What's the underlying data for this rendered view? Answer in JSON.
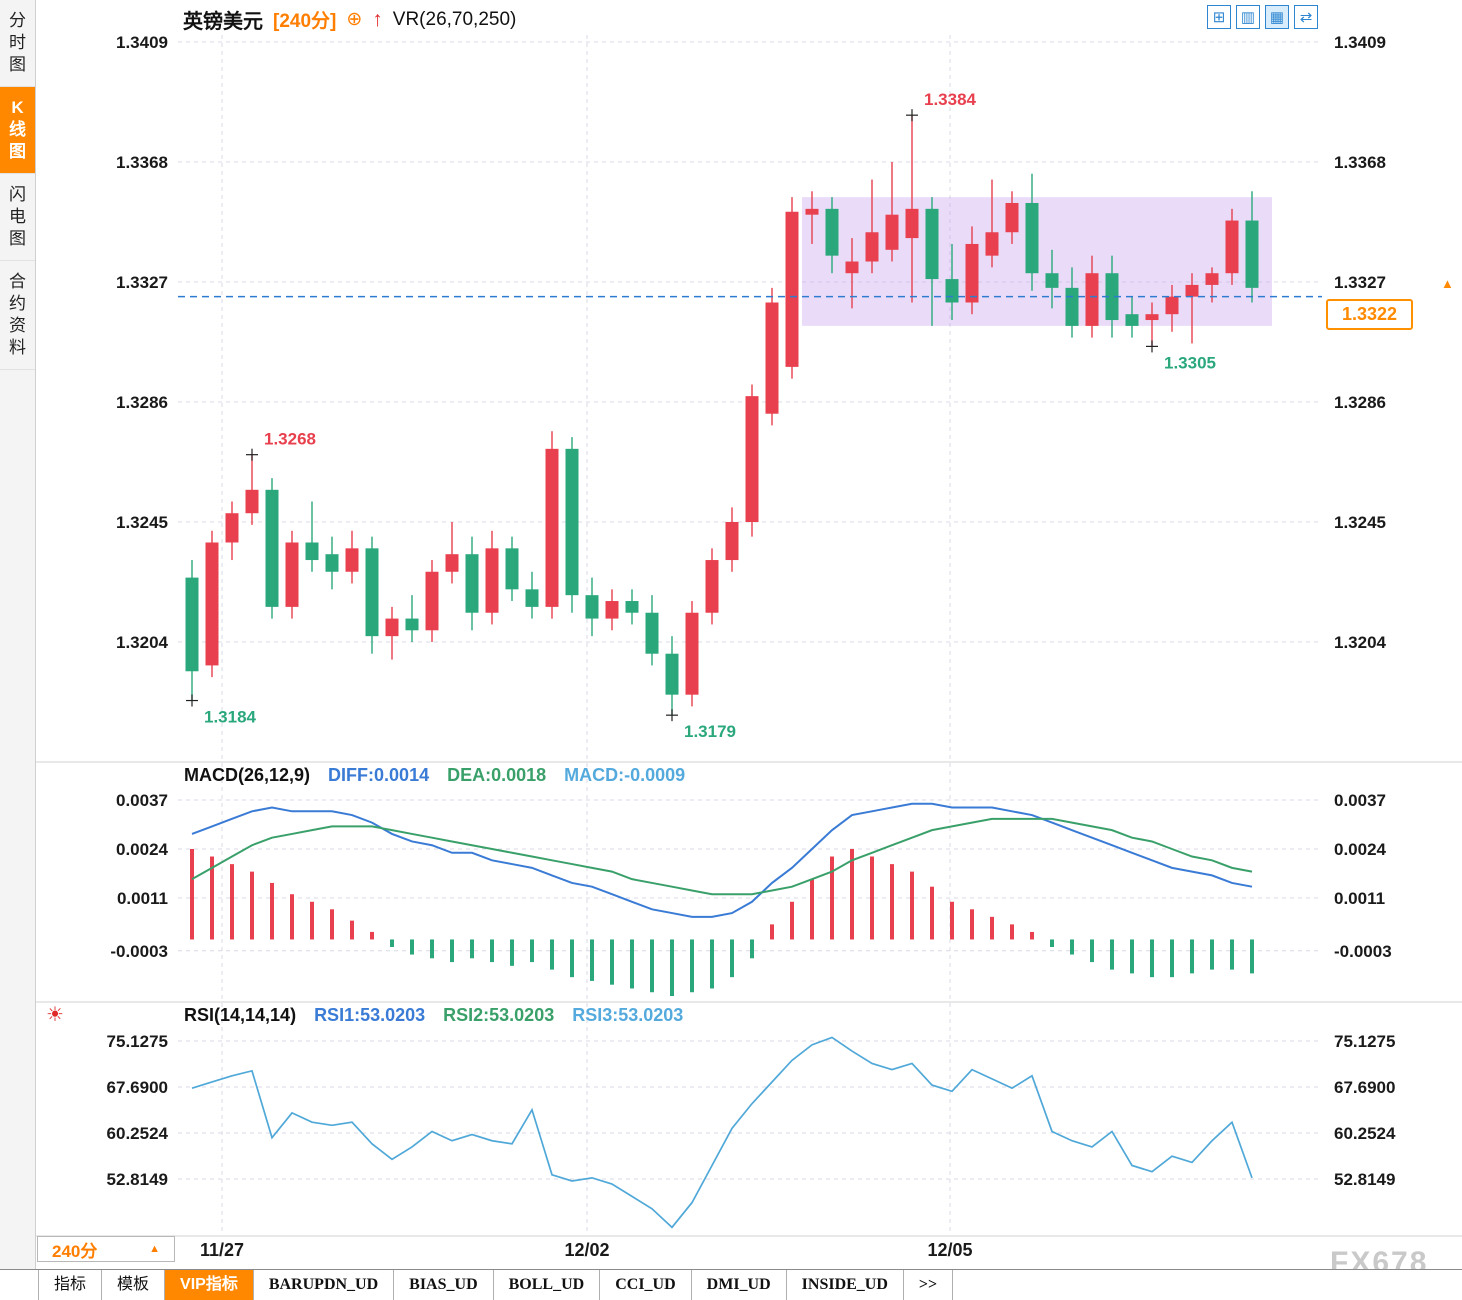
{
  "window": {
    "watermark": "FX678"
  },
  "sidebar": {
    "items": [
      {
        "label": "分时图",
        "active": false
      },
      {
        "label": "K线图",
        "active": true
      },
      {
        "label": "闪电图",
        "active": false
      },
      {
        "label": "合约资料",
        "active": false
      }
    ]
  },
  "header": {
    "symbol": "英镑美元",
    "period": "[240分]",
    "plus_icon": "⊕",
    "arrow_icon": "↑",
    "indicator": "VR(26,70,250)",
    "icons": [
      {
        "name": "grid-layout",
        "glyph": "⊞"
      },
      {
        "name": "multi-pane",
        "glyph": "▥"
      },
      {
        "name": "chart-panes",
        "glyph": "▦"
      },
      {
        "name": "cycle-layout",
        "glyph": "⇄"
      }
    ]
  },
  "macd_panel": {
    "title": "MACD(26,12,9)",
    "diff_label": "DIFF:0.0014",
    "dea_label": "DEA:0.0018",
    "macd_label": "MACD:-0.0009"
  },
  "rsi_panel": {
    "title": "RSI(14,14,14)",
    "rsi1_label": "RSI1:53.0203",
    "rsi2_label": "RSI2:53.0203",
    "rsi3_label": "RSI3:53.0203",
    "marker_glyph": "☀"
  },
  "current_price": {
    "value": "1.3322",
    "arrow": "▲"
  },
  "period_selector": {
    "label": "240分",
    "arrow": "▲"
  },
  "bottom_tabs": {
    "items": [
      {
        "label": "指标",
        "active": false,
        "en": false
      },
      {
        "label": "模板",
        "active": false,
        "en": false
      },
      {
        "label": "VIP指标",
        "active": true,
        "en": false
      },
      {
        "label": "BARUPDN_UD",
        "active": false,
        "en": true
      },
      {
        "label": "BIAS_UD",
        "active": false,
        "en": true
      },
      {
        "label": "BOLL_UD",
        "active": false,
        "en": true
      },
      {
        "label": "CCI_UD",
        "active": false,
        "en": true
      },
      {
        "label": "DMI_UD",
        "active": false,
        "en": true
      },
      {
        "label": "INSIDE_UD",
        "active": false,
        "en": true
      },
      {
        "label": ">>",
        "active": false,
        "en": true
      }
    ]
  },
  "x_axis": {
    "labels": [
      {
        "text": "11/27",
        "index": 1.5
      },
      {
        "text": "12/02",
        "index": 19.75
      },
      {
        "text": "12/05",
        "index": 37.9
      }
    ]
  },
  "colors": {
    "up": "#e8404e",
    "down": "#2aa87c",
    "accent_orange": "#ff8800",
    "diff_line": "#3a7bd5",
    "dea_line": "#3aa06a",
    "rsi_line": "#4fa8d8",
    "current_price_line": "#2f7bd0",
    "highlight": "rgba(196,156,238,0.35)",
    "annotation_high": "#e8404e",
    "annotation_low": "#2aa87c"
  },
  "chart_data": [
    {
      "type": "candlestick",
      "title": "英镑美元 240分",
      "y_ticks": [
        1.3409,
        1.3368,
        1.3327,
        1.3286,
        1.3245,
        1.3204
      ],
      "ylim": [
        1.3166,
        1.3409
      ],
      "current_price": 1.3322,
      "candles": [
        [
          1.3226,
          1.3232,
          1.3184,
          1.3194
        ],
        [
          1.3196,
          1.3242,
          1.3192,
          1.3238
        ],
        [
          1.3238,
          1.3252,
          1.3232,
          1.3248
        ],
        [
          1.3248,
          1.3268,
          1.3244,
          1.3256
        ],
        [
          1.3256,
          1.326,
          1.3212,
          1.3216
        ],
        [
          1.3216,
          1.3242,
          1.3212,
          1.3238
        ],
        [
          1.3238,
          1.3252,
          1.3228,
          1.3232
        ],
        [
          1.3234,
          1.324,
          1.3222,
          1.3228
        ],
        [
          1.3228,
          1.3242,
          1.3224,
          1.3236
        ],
        [
          1.3236,
          1.324,
          1.32,
          1.3206
        ],
        [
          1.3206,
          1.3216,
          1.3198,
          1.3212
        ],
        [
          1.3212,
          1.322,
          1.3204,
          1.3208
        ],
        [
          1.3208,
          1.3232,
          1.3204,
          1.3228
        ],
        [
          1.3228,
          1.3245,
          1.3224,
          1.3234
        ],
        [
          1.3234,
          1.324,
          1.3208,
          1.3214
        ],
        [
          1.3214,
          1.3242,
          1.321,
          1.3236
        ],
        [
          1.3236,
          1.324,
          1.3218,
          1.3222
        ],
        [
          1.3222,
          1.3228,
          1.3212,
          1.3216
        ],
        [
          1.3216,
          1.3276,
          1.3212,
          1.327
        ],
        [
          1.327,
          1.3274,
          1.3214,
          1.322
        ],
        [
          1.322,
          1.3226,
          1.3206,
          1.3212
        ],
        [
          1.3212,
          1.3222,
          1.3208,
          1.3218
        ],
        [
          1.3218,
          1.3222,
          1.321,
          1.3214
        ],
        [
          1.3214,
          1.322,
          1.3196,
          1.32
        ],
        [
          1.32,
          1.3206,
          1.3179,
          1.3186
        ],
        [
          1.3186,
          1.3218,
          1.3182,
          1.3214
        ],
        [
          1.3214,
          1.3236,
          1.321,
          1.3232
        ],
        [
          1.3232,
          1.325,
          1.3228,
          1.3245
        ],
        [
          1.3245,
          1.3292,
          1.324,
          1.3288
        ],
        [
          1.3282,
          1.3325,
          1.3278,
          1.332
        ],
        [
          1.3298,
          1.3356,
          1.3294,
          1.3351
        ],
        [
          1.335,
          1.3358,
          1.334,
          1.3352
        ],
        [
          1.3352,
          1.3356,
          1.333,
          1.3336
        ],
        [
          1.333,
          1.3342,
          1.3318,
          1.3334
        ],
        [
          1.3334,
          1.3362,
          1.333,
          1.3344
        ],
        [
          1.3338,
          1.3368,
          1.3334,
          1.335
        ],
        [
          1.3342,
          1.3384,
          1.332,
          1.3352
        ],
        [
          1.3352,
          1.3356,
          1.3312,
          1.3328
        ],
        [
          1.3328,
          1.334,
          1.3314,
          1.332
        ],
        [
          1.332,
          1.3346,
          1.3316,
          1.334
        ],
        [
          1.3336,
          1.3362,
          1.3332,
          1.3344
        ],
        [
          1.3344,
          1.3358,
          1.334,
          1.3354
        ],
        [
          1.3354,
          1.3364,
          1.3324,
          1.333
        ],
        [
          1.333,
          1.3338,
          1.3318,
          1.3325
        ],
        [
          1.3325,
          1.3332,
          1.3308,
          1.3312
        ],
        [
          1.3312,
          1.3336,
          1.3308,
          1.333
        ],
        [
          1.333,
          1.3336,
          1.3308,
          1.3314
        ],
        [
          1.3316,
          1.3322,
          1.3308,
          1.3312
        ],
        [
          1.3314,
          1.332,
          1.3305,
          1.3316
        ],
        [
          1.3316,
          1.3326,
          1.331,
          1.3322
        ],
        [
          1.3322,
          1.333,
          1.3306,
          1.3326
        ],
        [
          1.3326,
          1.3332,
          1.332,
          1.333
        ],
        [
          1.333,
          1.3352,
          1.3326,
          1.3348
        ],
        [
          1.3348,
          1.3358,
          1.332,
          1.3325
        ]
      ],
      "annotations": [
        {
          "index": 0,
          "price": 1.3184,
          "text": "1.3184",
          "side": "below",
          "color": "#2aa87c"
        },
        {
          "index": 3,
          "price": 1.3268,
          "text": "1.3268",
          "side": "above",
          "color": "#e8404e"
        },
        {
          "index": 24,
          "price": 1.3179,
          "text": "1.3179",
          "side": "below",
          "color": "#2aa87c"
        },
        {
          "index": 36,
          "price": 1.3384,
          "text": "1.3384",
          "side": "above",
          "color": "#e8404e"
        },
        {
          "index": 48,
          "price": 1.3305,
          "text": "1.3305",
          "side": "below",
          "color": "#2aa87c"
        }
      ],
      "highlight_box": {
        "from_index": 31,
        "to_index": 53,
        "top": 1.3356,
        "bottom": 1.3312
      }
    },
    {
      "type": "macd",
      "y_ticks": [
        0.0037,
        0.0024,
        0.0011,
        -0.0003
      ],
      "diff": [
        0.0028,
        0.003,
        0.0032,
        0.0034,
        0.0035,
        0.0034,
        0.0034,
        0.0034,
        0.0033,
        0.0031,
        0.0028,
        0.0026,
        0.0025,
        0.0023,
        0.0023,
        0.0021,
        0.002,
        0.0019,
        0.0017,
        0.0015,
        0.0014,
        0.0012,
        0.001,
        0.0008,
        0.0007,
        0.0006,
        0.0006,
        0.0007,
        0.001,
        0.0015,
        0.0019,
        0.0024,
        0.0029,
        0.0033,
        0.0034,
        0.0035,
        0.0036,
        0.0036,
        0.0035,
        0.0035,
        0.0035,
        0.0034,
        0.0033,
        0.0031,
        0.0029,
        0.0027,
        0.0025,
        0.0023,
        0.0021,
        0.0019,
        0.0018,
        0.0017,
        0.0015,
        0.0014
      ],
      "dea": [
        0.0016,
        0.0019,
        0.0022,
        0.0025,
        0.0027,
        0.0028,
        0.0029,
        0.003,
        0.003,
        0.003,
        0.0029,
        0.0028,
        0.0027,
        0.0026,
        0.0025,
        0.0024,
        0.0023,
        0.0022,
        0.0021,
        0.002,
        0.0019,
        0.0018,
        0.0016,
        0.0015,
        0.0014,
        0.0013,
        0.0012,
        0.0012,
        0.0012,
        0.0013,
        0.0014,
        0.0016,
        0.0018,
        0.0021,
        0.0023,
        0.0025,
        0.0027,
        0.0029,
        0.003,
        0.0031,
        0.0032,
        0.0032,
        0.0032,
        0.0032,
        0.0031,
        0.003,
        0.0029,
        0.0027,
        0.0026,
        0.0024,
        0.0022,
        0.0021,
        0.0019,
        0.0018
      ],
      "histogram": [
        0.0024,
        0.0022,
        0.002,
        0.0018,
        0.0015,
        0.0012,
        0.001,
        0.0008,
        0.0005,
        0.0002,
        -0.0002,
        -0.0004,
        -0.0005,
        -0.0006,
        -0.0005,
        -0.0006,
        -0.0007,
        -0.0006,
        -0.0008,
        -0.001,
        -0.0011,
        -0.0012,
        -0.0013,
        -0.0014,
        -0.0015,
        -0.0014,
        -0.0013,
        -0.001,
        -0.0005,
        0.0004,
        0.001,
        0.0016,
        0.0022,
        0.0024,
        0.0022,
        0.002,
        0.0018,
        0.0014,
        0.001,
        0.0008,
        0.0006,
        0.0004,
        0.0002,
        -0.0002,
        -0.0004,
        -0.0006,
        -0.0008,
        -0.0009,
        -0.001,
        -0.001,
        -0.0009,
        -0.0008,
        -0.0008,
        -0.0009
      ]
    },
    {
      "type": "line",
      "name": "RSI",
      "y_ticks": [
        75.1275,
        67.69,
        60.2524,
        52.8149
      ],
      "values": [
        67.5,
        68.5,
        69.5,
        70.3,
        59.5,
        63.5,
        62.0,
        61.5,
        62.0,
        58.5,
        56.0,
        58.0,
        60.5,
        59.0,
        60.0,
        59.0,
        58.5,
        64.0,
        53.5,
        52.5,
        53.0,
        52.0,
        50.0,
        48.0,
        45.0,
        49.0,
        55.0,
        61.0,
        65.0,
        68.5,
        72.0,
        74.5,
        75.7,
        73.5,
        71.5,
        70.5,
        71.5,
        68.0,
        67.0,
        70.5,
        69.0,
        67.5,
        69.5,
        60.5,
        59.0,
        58.0,
        60.5,
        55.0,
        54.0,
        56.5,
        55.5,
        59.0,
        62.0,
        53.0
      ]
    }
  ]
}
